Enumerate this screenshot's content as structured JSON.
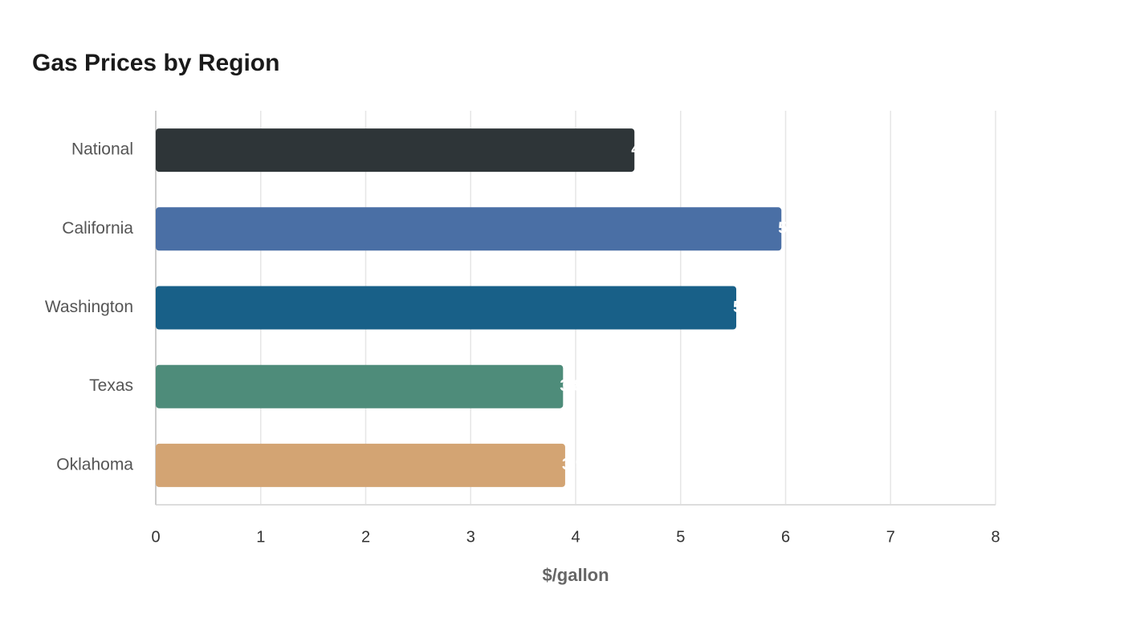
{
  "chart_data": {
    "type": "bar",
    "orientation": "horizontal",
    "title": "Gas Prices by Region",
    "x_label": "$/gallon",
    "categories": [
      "National",
      "California",
      "Washington",
      "Texas",
      "Oklahoma"
    ],
    "values": [
      4.56,
      5.96,
      5.53,
      3.88,
      3.9
    ],
    "colors": [
      "#2e3538",
      "#4a6fa5",
      "#186088",
      "#4e8c7a",
      "#d3a473"
    ],
    "xlim": [
      0,
      8
    ],
    "xticks": [
      0,
      1,
      2,
      3,
      4,
      5,
      6,
      7,
      8
    ],
    "grid": true
  }
}
